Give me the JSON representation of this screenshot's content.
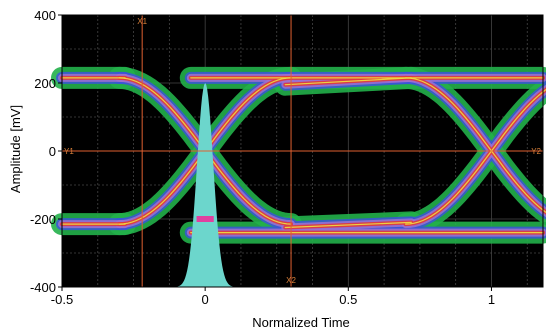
{
  "chart_data": {
    "type": "eye-diagram",
    "xlabel": "Normalized Time",
    "ylabel": "Amplitude [mV]",
    "xlim": [
      -0.5,
      1.18
    ],
    "ylim": [
      -400,
      400
    ],
    "x_ticks": [
      {
        "value": -0.5,
        "label": "-0.5"
      },
      {
        "value": 0,
        "label": "0"
      },
      {
        "value": 0.5,
        "label": "0.5"
      },
      {
        "value": 1,
        "label": "1"
      }
    ],
    "y_ticks": [
      {
        "value": 400,
        "label": "400"
      },
      {
        "value": 200,
        "label": "200"
      },
      {
        "value": 0,
        "label": "0"
      },
      {
        "value": -200,
        "label": "-200"
      },
      {
        "value": -400,
        "label": "-400"
      }
    ],
    "grid": true,
    "levels": {
      "high": 215,
      "low": -215
    },
    "crossings": [
      0,
      1
    ],
    "cursors": {
      "vertical": [
        {
          "label": "X1",
          "x": -0.22
        },
        {
          "label": "X2",
          "x": 0.3
        }
      ],
      "horizontal": [
        {
          "label": "Y1",
          "y": 0
        },
        {
          "label": "Y2",
          "y": 0
        }
      ]
    },
    "histogram": {
      "center": 0.0,
      "sigma": 0.028,
      "peak_y": 200,
      "base_y": -400
    },
    "colors": {
      "background": "#000000",
      "grid": "#444444",
      "cursor": "#e06030",
      "density_low": "#22b04a",
      "density_mid": "#3a55d8",
      "density_mid2": "#a070d0",
      "density_high": "#e03a3a",
      "density_peak": "#f0e040",
      "histogram": "#6cd6cc",
      "histogram_marker": "#e040a0"
    }
  }
}
